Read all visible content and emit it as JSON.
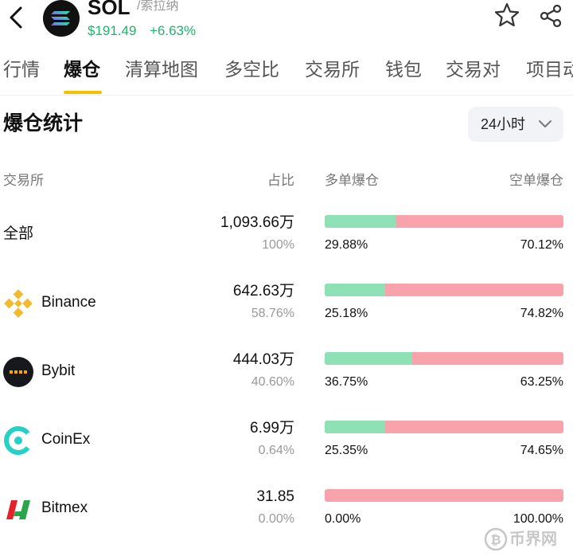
{
  "header": {
    "symbol": "SOL",
    "name": "/索拉纳",
    "price": "$191.49",
    "change": "+6.63%",
    "icons": [
      "back-icon",
      "solana-logo-icon",
      "star-icon",
      "share-icon"
    ],
    "price_color": "#1bb56b"
  },
  "tabs": [
    "行情",
    "爆仓",
    "清算地图",
    "多空比",
    "交易所",
    "钱包",
    "交易对",
    "项目动"
  ],
  "active_tab": "爆仓",
  "accent_color": "#f6c000",
  "section": {
    "title": "爆仓统计",
    "period": "24小时"
  },
  "columns": {
    "exchange": "交易所",
    "share": "占比",
    "long": "多单爆仓",
    "short": "空单爆仓"
  },
  "rows": [
    {
      "name": "全部",
      "amount": "1,093.66万",
      "share": "100%",
      "long_pct": "29.88%",
      "short_pct": "70.12%",
      "long_fraction": 0.2988,
      "icon": ""
    },
    {
      "name": "Binance",
      "amount": "642.63万",
      "share": "58.76%",
      "long_pct": "25.18%",
      "short_pct": "74.82%",
      "long_fraction": 0.2518,
      "icon": "binance-logo-icon"
    },
    {
      "name": "Bybit",
      "amount": "444.03万",
      "share": "40.60%",
      "long_pct": "36.75%",
      "short_pct": "63.25%",
      "long_fraction": 0.3675,
      "icon": "bybit-logo-icon"
    },
    {
      "name": "CoinEx",
      "amount": "6.99万",
      "share": "0.64%",
      "long_pct": "25.35%",
      "short_pct": "74.65%",
      "long_fraction": 0.2535,
      "icon": "coinex-logo-icon"
    },
    {
      "name": "Bitmex",
      "amount": "31.85",
      "share": "0.00%",
      "long_pct": "0.00%",
      "short_pct": "100.00%",
      "long_fraction": 0.0,
      "icon": "bitmex-logo-icon"
    }
  ],
  "bar_colors": {
    "long": "#8ee0b5",
    "short": "#f8a3ab"
  },
  "watermark": "币界网"
}
